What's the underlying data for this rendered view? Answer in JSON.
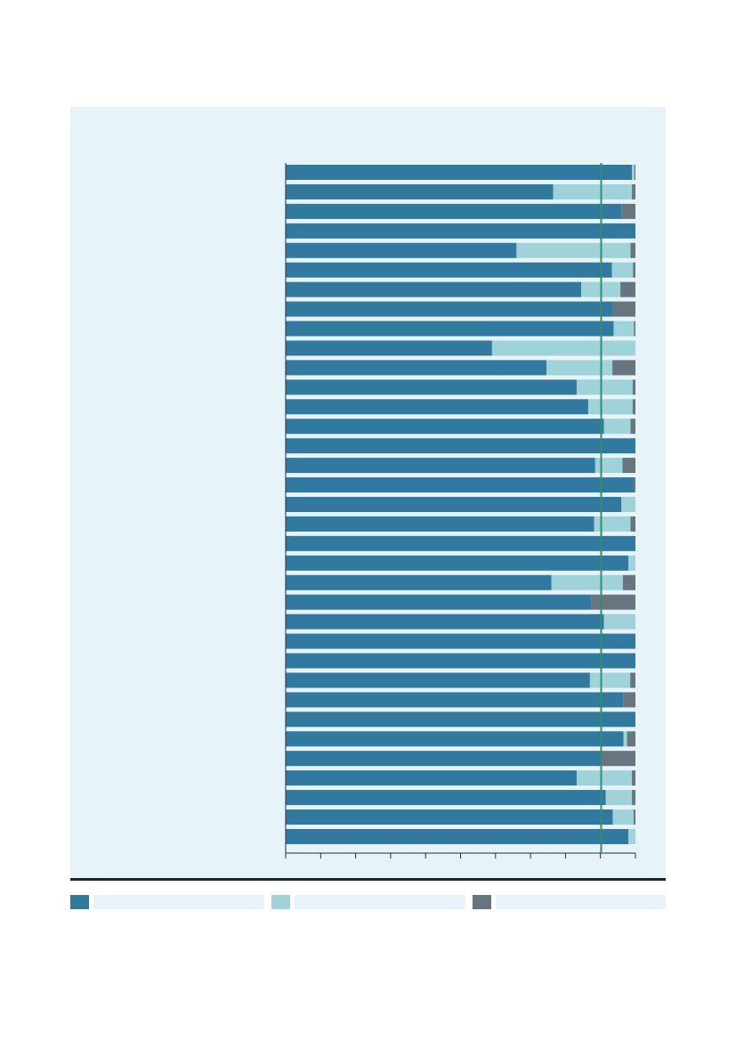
{
  "colors": {
    "panel_bg": "#e6f3f9",
    "series_1": "#31799e",
    "series_2": "#9fd3d9",
    "series_3": "#67757f",
    "reference_line": "#2f8f6f",
    "axis": "#2b2b2b"
  },
  "chart_data": {
    "type": "bar",
    "orientation": "horizontal",
    "stacked": true,
    "xlim": [
      0,
      100
    ],
    "x_ticks": [
      0,
      10,
      20,
      30,
      40,
      50,
      60,
      70,
      80,
      90,
      100
    ],
    "reference_line_x": 90.2,
    "series": [
      {
        "values": [
          99.0,
          76.5,
          96.0,
          100.0,
          66.0,
          93.3,
          84.5,
          93.5,
          93.8,
          59.0,
          74.6,
          83.2,
          86.5,
          91.0,
          100.0,
          88.5,
          99.5,
          96.0,
          88.2,
          100.0,
          98.0,
          76.0,
          87.3,
          91.0,
          100.0,
          100.0,
          87.0,
          96.5,
          100.0,
          96.6,
          90.0,
          83.2,
          91.5,
          93.5,
          98.0
        ]
      },
      {
        "values": [
          0.7,
          22.5,
          0.0,
          0.0,
          32.6,
          6.0,
          11.2,
          0.0,
          5.8,
          41.0,
          18.8,
          16.0,
          12.7,
          7.6,
          0.0,
          7.8,
          0.0,
          4.0,
          10.4,
          0.0,
          2.0,
          20.4,
          0.0,
          9.0,
          0.0,
          0.0,
          11.5,
          0.0,
          0.0,
          1.0,
          0.0,
          15.8,
          7.5,
          6.0,
          2.0
        ]
      },
      {
        "values": [
          0.3,
          1.0,
          4.0,
          0.0,
          1.4,
          0.7,
          4.3,
          6.5,
          0.4,
          0.0,
          6.6,
          0.8,
          0.8,
          1.4,
          0.0,
          3.7,
          0.5,
          0.0,
          1.4,
          0.0,
          0.0,
          3.6,
          12.7,
          0.0,
          0.0,
          0.0,
          1.5,
          3.5,
          0.0,
          2.4,
          10.0,
          1.0,
          1.0,
          0.5,
          0.0
        ]
      }
    ]
  },
  "legend": [
    {
      "label": ""
    },
    {
      "label": ""
    },
    {
      "label": ""
    }
  ]
}
